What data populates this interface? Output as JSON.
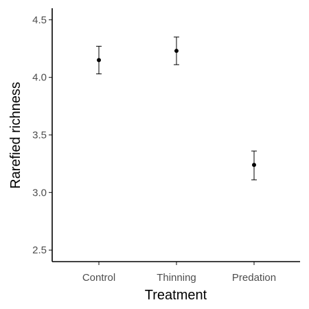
{
  "chart_data": {
    "type": "scatter",
    "xlabel": "Treatment",
    "ylabel": "Rarefied richness",
    "categories": [
      "Control",
      "Thinning",
      "Predation"
    ],
    "series": [
      {
        "values": [
          4.15,
          4.23,
          3.24
        ],
        "lower": [
          4.03,
          4.11,
          3.11
        ],
        "upper": [
          4.27,
          4.35,
          3.36
        ]
      }
    ],
    "ylim": [
      2.4,
      4.6
    ],
    "yticks": [
      2.5,
      3.0,
      3.5,
      4.0,
      4.5
    ],
    "ytick_labels": [
      "2.5",
      "3.0",
      "3.5",
      "4.0",
      "4.5"
    ],
    "grid": false,
    "legend": "none"
  }
}
